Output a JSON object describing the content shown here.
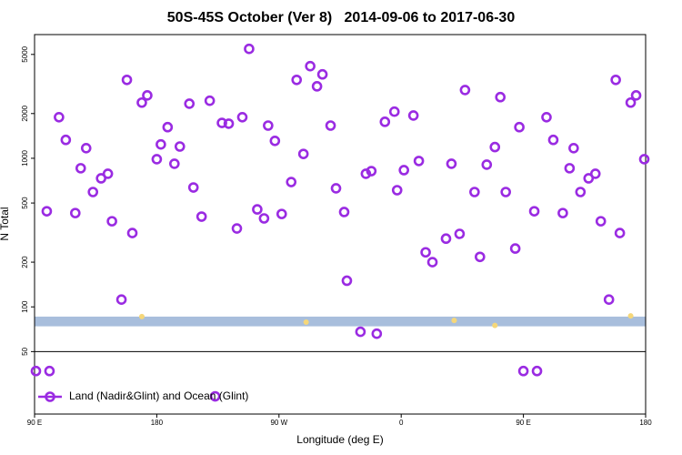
{
  "chart_data": {
    "type": "scatter",
    "title": "50S-45S October (Ver 8)   2014-09-06 to 2017-06-30",
    "xlabel": "Longitude (deg E)",
    "ylabel": "N Total",
    "log_y": true,
    "legend": "lower left",
    "xlim": [
      90,
      540
    ],
    "xticks": [
      {
        "value": 90,
        "label": "90 E"
      },
      180,
      {
        "value": 270,
        "label": "90 W"
      },
      {
        "value": 360,
        "label": "0"
      },
      {
        "value": 450,
        "label": "90 E"
      },
      {
        "value": 540,
        "label": "180"
      }
    ],
    "ylim": [
      19,
      6800
    ],
    "yticks": [
      50,
      100,
      200,
      500,
      1000,
      2000,
      5000
    ],
    "band": {
      "range": [
        74,
        86
      ],
      "color": "#a8bedc"
    },
    "series": [
      {
        "name": "Land (Nadir&Glint) and Ocean (Glint)",
        "color": "#9a2be2",
        "x": [
          91,
          99,
          101,
          108,
          113,
          120,
          124,
          128,
          133,
          139,
          144,
          147,
          154,
          158,
          162,
          169,
          173,
          180,
          183,
          188,
          193,
          197,
          204,
          207,
          213,
          219,
          223,
          228,
          233,
          239,
          243,
          248,
          254,
          259,
          262,
          267,
          272,
          279,
          283,
          288,
          293,
          298,
          302,
          308,
          312,
          318,
          320,
          330,
          334,
          338,
          342,
          348,
          355,
          357,
          362,
          369,
          373,
          378,
          383,
          393,
          397,
          403,
          407,
          414,
          418,
          423,
          429,
          433,
          437,
          444,
          447,
          450,
          458,
          460,
          467,
          472,
          479,
          484,
          487,
          492,
          498,
          503,
          507,
          513,
          518,
          521,
          529,
          533,
          539
        ],
        "values": [
          37,
          440,
          37,
          1890,
          1330,
          428,
          857,
          1170,
          593,
          733,
          787,
          377,
          112,
          3370,
          314,
          2370,
          2650,
          986,
          1240,
          1620,
          919,
          1200,
          2330,
          636,
          405,
          2440,
          25,
          1730,
          1710,
          337,
          1890,
          5450,
          453,
          394,
          1660,
          1310,
          422,
          692,
          3370,
          1070,
          4170,
          3050,
          3670,
          1660,
          628,
          435,
          150,
          68,
          787,
          820,
          66,
          1760,
          2060,
          610,
          832,
          1940,
          959,
          233,
          200,
          288,
          919,
          310,
          2880,
          593,
          217,
          906,
          1190,
          2580,
          593,
          247,
          1620,
          37,
          440,
          37,
          1890,
          1330,
          428,
          857,
          1170,
          593,
          733,
          787,
          377,
          112,
          3370,
          314,
          2370,
          2650,
          986
        ]
      },
      {
        "color": "#f5d77a",
        "x": [
          169,
          290,
          399,
          429,
          529
        ],
        "values": [
          86,
          79,
          81,
          75,
          87
        ]
      }
    ]
  }
}
